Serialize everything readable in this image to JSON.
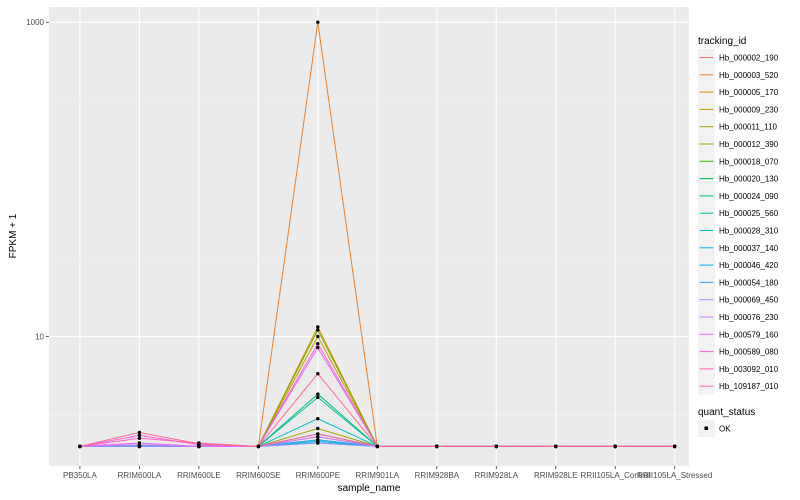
{
  "chart_data": {
    "type": "line",
    "xlabel": "sample_name",
    "ylabel": "FPKM + 1",
    "y_scale": "log10",
    "yticks": [
      10,
      1000
    ],
    "ylim": [
      1.5,
      1250
    ],
    "grid": true,
    "background": "#EBEBEB",
    "legend_position": "right",
    "categories": [
      "PB350LA",
      "RRIM600LA",
      "RRIM600LE",
      "RRIM600SE",
      "RRIM600PE",
      "RRIM901LA",
      "RRIM928BA",
      "RRIM928LA",
      "RRIM928LE",
      "RRII105LA_Control",
      "RRII105LA_Stressed"
    ],
    "legend": {
      "title": "tracking_id",
      "entries": [
        "Hb_000002_190",
        "Hb_000003_520",
        "Hb_000005_170",
        "Hb_000009_230",
        "Hb_000011_110",
        "Hb_000012_390",
        "Hb_000018_070",
        "Hb_000020_130",
        "Hb_000024_090",
        "Hb_000025_560",
        "Hb_000028_310",
        "Hb_000037_140",
        "Hb_000046_420",
        "Hb_000054_180",
        "Hb_000069_450",
        "Hb_000076_230",
        "Hb_000579_160",
        "Hb_000589_080",
        "Hb_003092_010",
        "Hb_109187_010"
      ]
    },
    "shape_legend": {
      "title": "quant_status",
      "entries": [
        "OK"
      ]
    },
    "series": [
      {
        "name": "Hb_000002_190",
        "color": "#F8766D",
        "values": [
          2,
          2,
          2,
          2,
          2.3,
          2,
          2,
          2,
          2,
          2,
          2
        ]
      },
      {
        "name": "Hb_000003_520",
        "color": "#EA8331",
        "values": [
          2,
          2,
          2,
          2,
          1000,
          2,
          2,
          2,
          2,
          2,
          2
        ]
      },
      {
        "name": "Hb_000005_170",
        "color": "#D89000",
        "values": [
          2,
          2,
          2,
          2,
          11.5,
          2,
          2,
          2,
          2,
          2,
          2
        ]
      },
      {
        "name": "Hb_000009_230",
        "color": "#C09B00",
        "values": [
          2,
          2,
          2,
          2,
          10,
          2,
          2,
          2,
          2,
          2,
          2
        ]
      },
      {
        "name": "Hb_000011_110",
        "color": "#A3A500",
        "values": [
          2,
          2,
          2,
          2,
          2.6,
          2,
          2,
          2,
          2,
          2,
          2
        ]
      },
      {
        "name": "Hb_000012_390",
        "color": "#7CAE00",
        "values": [
          2,
          2,
          2,
          2,
          11,
          2,
          2,
          2,
          2,
          2,
          2
        ]
      },
      {
        "name": "Hb_000018_070",
        "color": "#39B600",
        "values": [
          2,
          2,
          2,
          2,
          2.4,
          2,
          2,
          2,
          2,
          2,
          2
        ]
      },
      {
        "name": "Hb_000020_130",
        "color": "#00BB4E",
        "values": [
          2,
          2,
          2,
          2,
          2.2,
          2,
          2,
          2,
          2,
          2,
          2
        ]
      },
      {
        "name": "Hb_000024_090",
        "color": "#00BF7D",
        "values": [
          2,
          2,
          2,
          2,
          4.3,
          2,
          2,
          2,
          2,
          2,
          2
        ]
      },
      {
        "name": "Hb_000025_560",
        "color": "#00C1A3",
        "values": [
          2,
          2,
          2,
          2,
          4.1,
          2,
          2,
          2,
          2,
          2,
          2
        ]
      },
      {
        "name": "Hb_000028_310",
        "color": "#00BFC4",
        "values": [
          2,
          2,
          2,
          2,
          3,
          2,
          2,
          2,
          2,
          2,
          2
        ]
      },
      {
        "name": "Hb_000037_140",
        "color": "#00BAE0",
        "values": [
          2,
          2,
          2,
          2,
          2.15,
          2,
          2,
          2,
          2,
          2,
          2
        ]
      },
      {
        "name": "Hb_000046_420",
        "color": "#00B0F6",
        "values": [
          2,
          2,
          2,
          2,
          2.1,
          2,
          2,
          2,
          2,
          2,
          2
        ]
      },
      {
        "name": "Hb_000054_180",
        "color": "#35A2FF",
        "values": [
          2,
          2,
          2,
          2,
          2.2,
          2,
          2,
          2,
          2,
          2,
          2
        ]
      },
      {
        "name": "Hb_000069_450",
        "color": "#9590FF",
        "values": [
          2,
          2,
          2,
          2,
          2.1,
          2,
          2,
          2,
          2,
          2,
          2
        ]
      },
      {
        "name": "Hb_000076_230",
        "color": "#C77CFF",
        "values": [
          2,
          2.05,
          2,
          2,
          2.3,
          2,
          2,
          2,
          2,
          2,
          2
        ]
      },
      {
        "name": "Hb_000579_160",
        "color": "#E76BF3",
        "values": [
          2,
          2.1,
          2,
          2,
          8.5,
          2,
          2,
          2,
          2,
          2,
          2
        ]
      },
      {
        "name": "Hb_000589_080",
        "color": "#FA62DB",
        "values": [
          2,
          2.35,
          2.05,
          2,
          9,
          2,
          2,
          2,
          2,
          2,
          2
        ]
      },
      {
        "name": "Hb_003092_010",
        "color": "#FF62BC",
        "values": [
          2,
          2.25,
          2.1,
          2,
          2.4,
          2,
          2,
          2,
          2,
          2,
          2
        ]
      },
      {
        "name": "Hb_109187_010",
        "color": "#FF6C91",
        "values": [
          2,
          2.45,
          2.08,
          2,
          5.8,
          2,
          2,
          2,
          2,
          2,
          2
        ]
      }
    ]
  }
}
